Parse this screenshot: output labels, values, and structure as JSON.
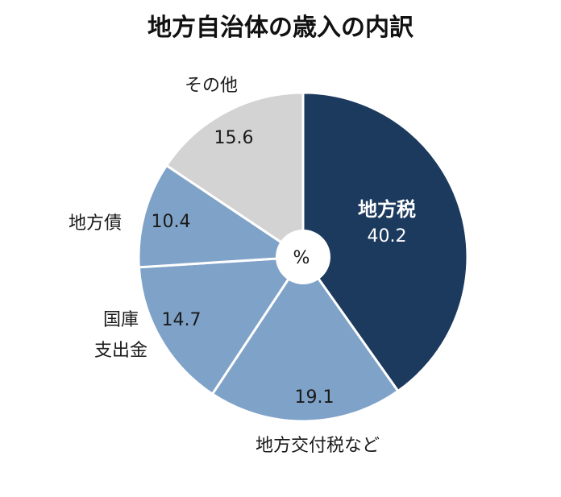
{
  "chart_data": {
    "type": "pie",
    "title": "地方自治体の歳入の内訳",
    "unit": "%",
    "start_angle_deg": 0,
    "direction": "clockwise",
    "slices": [
      {
        "label": "地方税",
        "value": 40.2,
        "value_label": "40.2",
        "color": "#1c3a5e",
        "label_inside": true
      },
      {
        "label": "地方交付税など",
        "value": 19.1,
        "value_label": "19.1",
        "color": "#7fa2c8",
        "label_inside": false
      },
      {
        "label": "国庫\n支出金",
        "value": 14.7,
        "value_label": "14.7",
        "color": "#7fa2c8",
        "label_inside": false
      },
      {
        "label": "地方債",
        "value": 10.4,
        "value_label": "10.4",
        "color": "#7fa2c8",
        "label_inside": false
      },
      {
        "label": "その他",
        "value": 15.6,
        "value_label": "15.6",
        "color": "#d3d3d3",
        "label_inside": false
      }
    ]
  }
}
